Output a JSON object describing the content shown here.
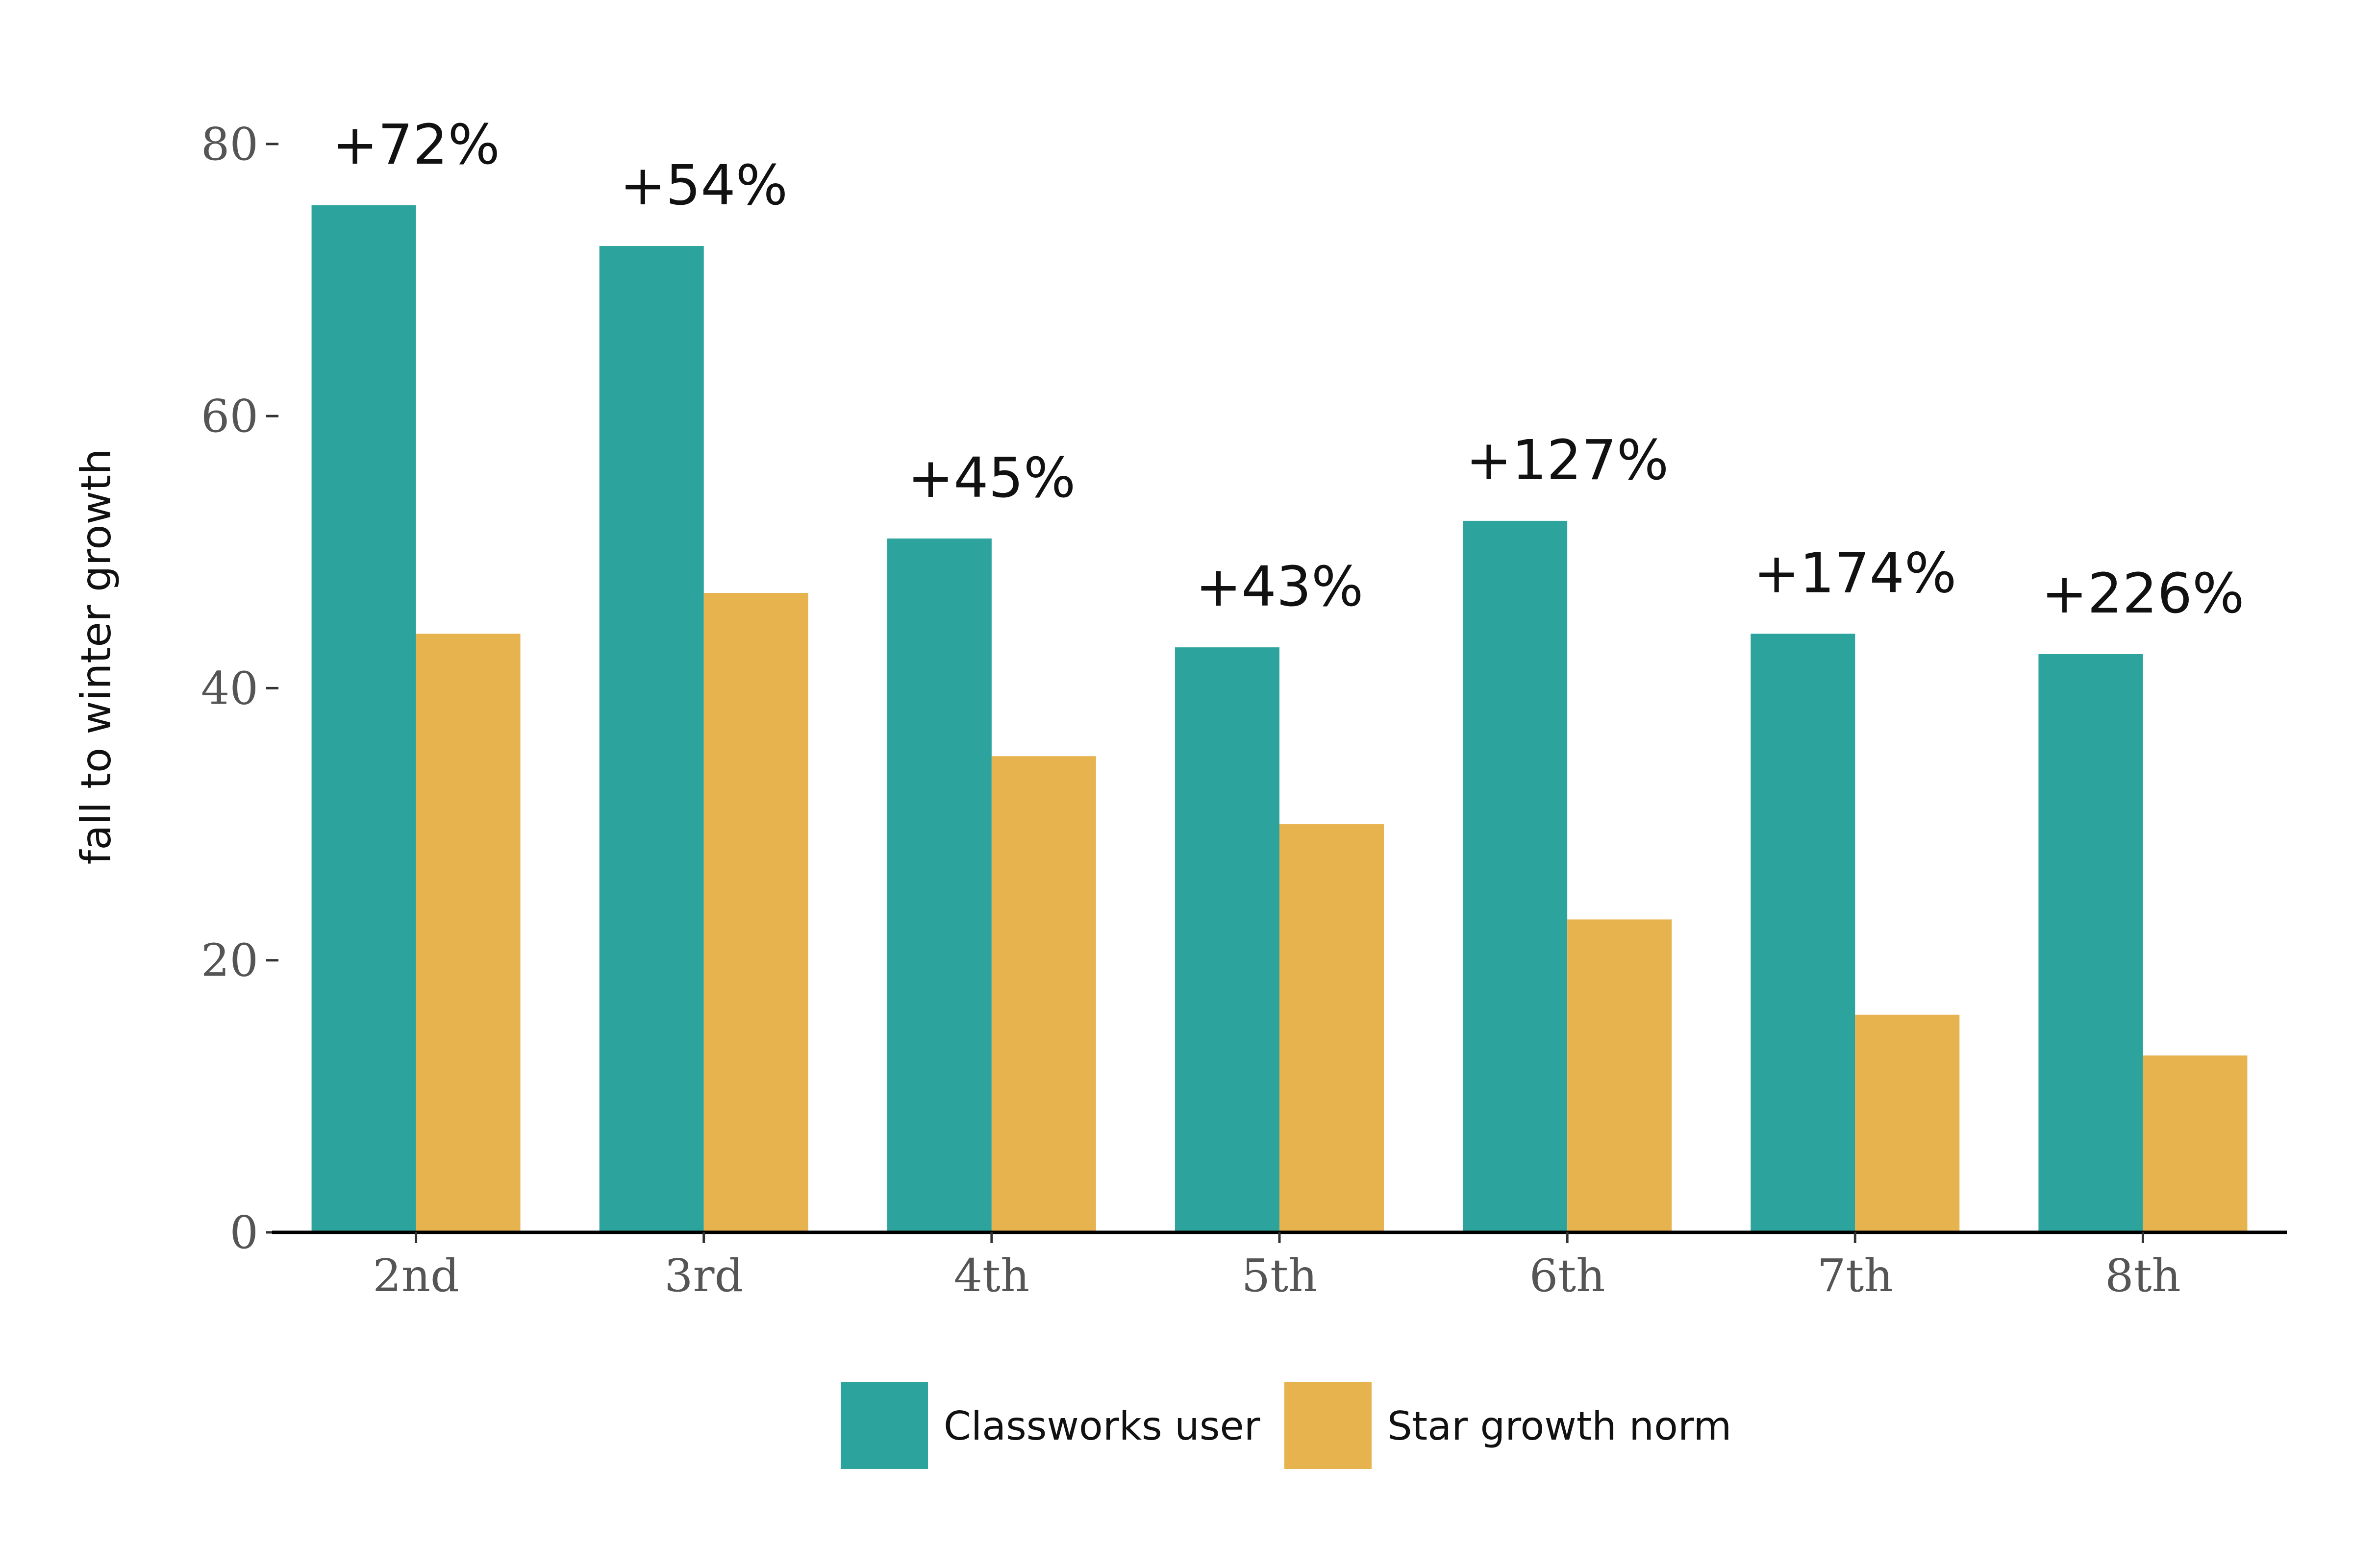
{
  "chart_data": {
    "type": "bar",
    "ylabel": "fall to winter growth",
    "xlabel": "",
    "ylim": [
      0,
      85
    ],
    "yticks": [
      0,
      20,
      40,
      60,
      80
    ],
    "grid": false,
    "legend_position": "bottom",
    "categories": [
      "2nd",
      "3rd",
      "4th",
      "5th",
      "6th",
      "7th",
      "8th"
    ],
    "series": [
      {
        "name": "Classworks user",
        "color": "#2ca39c",
        "values": [
          75.5,
          72.5,
          51,
          43,
          52.3,
          44,
          42.5
        ]
      },
      {
        "name": "Star growth norm",
        "color": "#e7b34f",
        "values": [
          44,
          47,
          35,
          30,
          23,
          16,
          13
        ]
      }
    ],
    "bar_labels": [
      "+72%",
      "+54%",
      "+45%",
      "+43%",
      "+127%",
      "+174%",
      "+226%"
    ]
  }
}
